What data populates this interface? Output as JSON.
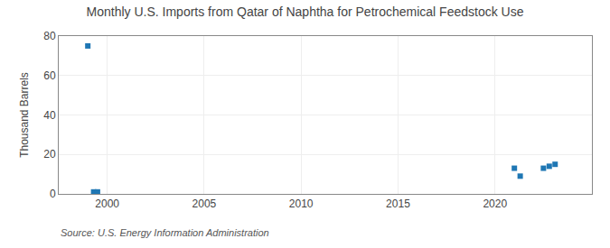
{
  "chart_data": {
    "type": "scatter",
    "title": "Monthly U.S. Imports from Qatar of Naphtha for Petrochemical Feedstock Use",
    "ylabel": "Thousand Barrels",
    "annotations": [
      "Source: U.S. Energy Information Administration"
    ],
    "x": [
      1999.0,
      1999.3,
      1999.5,
      2021.0,
      2021.3,
      2022.5,
      2022.8,
      2023.1
    ],
    "values": [
      75,
      1,
      1,
      13,
      9,
      13,
      14,
      15
    ],
    "marker": "square",
    "xlim": [
      1997.5,
      2025.0
    ],
    "xticks": [
      2000,
      2005,
      2010,
      2015,
      2020
    ],
    "ylim": [
      0,
      80
    ],
    "yticks": [
      0,
      20,
      40,
      60,
      80
    ],
    "grid": true
  }
}
